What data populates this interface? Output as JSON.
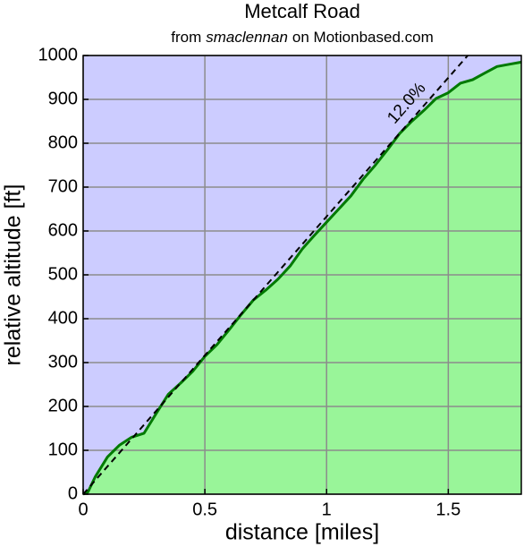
{
  "chart_data": {
    "type": "area",
    "title": "Metcalf Road",
    "subtitle_prefix": "from",
    "subtitle_author": "smaclennan",
    "subtitle_suffix": "on Motionbased.com",
    "x_label": "distance [miles]",
    "y_label": "relative altitude [ft]",
    "x": [
      0,
      0.02,
      0.05,
      0.1,
      0.15,
      0.2,
      0.25,
      0.3,
      0.35,
      0.4,
      0.45,
      0.5,
      0.55,
      0.6,
      0.65,
      0.7,
      0.75,
      0.8,
      0.85,
      0.9,
      0.95,
      1.0,
      1.05,
      1.1,
      1.15,
      1.2,
      1.25,
      1.3,
      1.35,
      1.4,
      1.45,
      1.5,
      1.55,
      1.6,
      1.65,
      1.7,
      1.75,
      1.8
    ],
    "values": [
      0,
      5,
      40,
      85,
      112,
      130,
      139,
      184,
      228,
      253,
      280,
      314,
      341,
      375,
      410,
      443,
      465,
      490,
      520,
      559,
      590,
      620,
      650,
      680,
      718,
      750,
      785,
      822,
      850,
      875,
      902,
      915,
      937,
      945,
      960,
      975,
      980,
      985
    ],
    "color": "#007a00",
    "fill_color": "#99f599",
    "background_color": "#ccccff",
    "reference_line": {
      "label": "12.0%",
      "x": [
        0,
        1.58
      ],
      "y": [
        0,
        1000
      ]
    },
    "xlim": [
      0,
      1.8
    ],
    "ylim": [
      0,
      1000
    ],
    "xticks": [
      0,
      0.5,
      1,
      1.5
    ],
    "yticks": [
      0,
      100,
      200,
      300,
      400,
      500,
      600,
      700,
      800,
      900,
      1000
    ],
    "grid": true
  }
}
